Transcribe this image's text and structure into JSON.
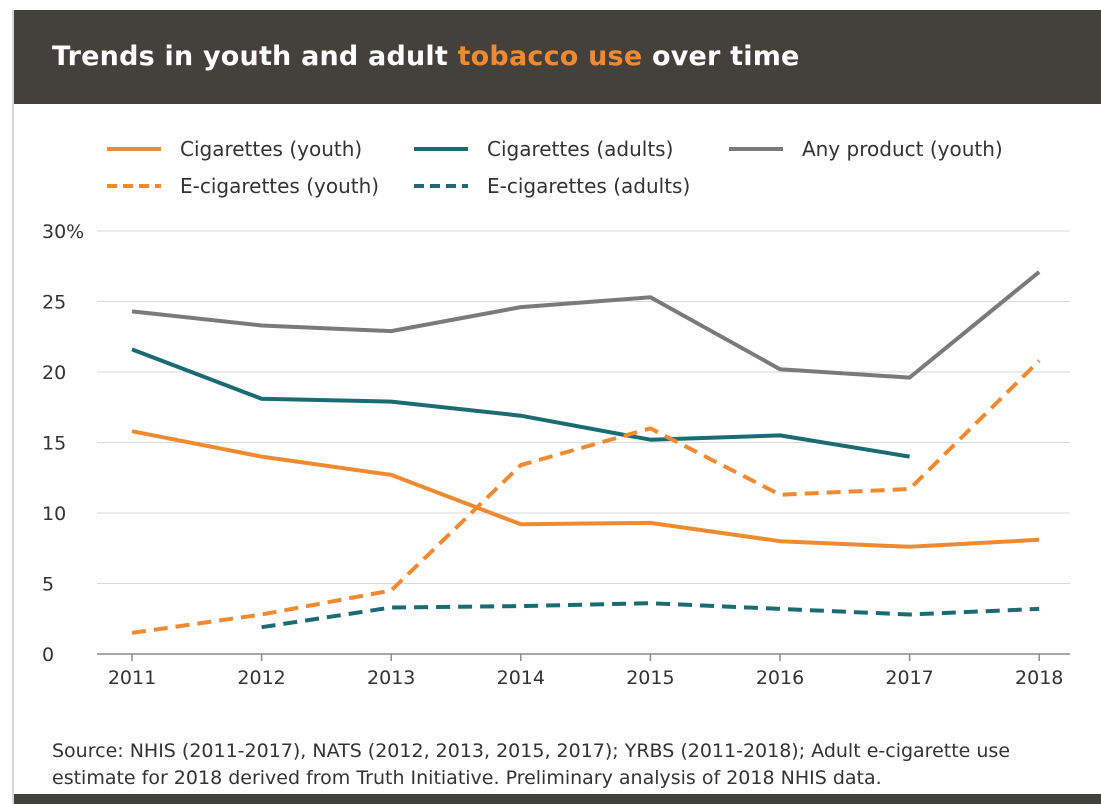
{
  "header": {
    "title_before": "Trends in youth and adult ",
    "title_highlight": "tobacco use",
    "title_after": " over time",
    "highlight_color": "#f08a30",
    "background": "#44403b"
  },
  "legend": [
    {
      "label": "Cigarettes (youth)",
      "color": "#f08a30",
      "style": "solid"
    },
    {
      "label": "Cigarettes (adults)",
      "color": "#1a6b72",
      "style": "solid"
    },
    {
      "label": "Any product (youth)",
      "color": "#7a7a7a",
      "style": "solid"
    },
    {
      "label": "E-cigarettes (youth)",
      "color": "#f08a30",
      "style": "dashed"
    },
    {
      "label": "E-cigarettes (adults)",
      "color": "#1a6b72",
      "style": "dashed"
    }
  ],
  "chart_data": {
    "type": "line",
    "title": "Trends in youth and adult tobacco use over time",
    "xlabel": "",
    "ylabel": "",
    "x": [
      2011,
      2012,
      2013,
      2014,
      2015,
      2016,
      2017,
      2018
    ],
    "x_tick_labels": [
      "2011",
      "2012",
      "2013",
      "2014",
      "2015",
      "2016",
      "2017",
      "2018"
    ],
    "ylim": [
      0,
      30
    ],
    "y_ticks": [
      0,
      5,
      10,
      15,
      20,
      25,
      30
    ],
    "y_tick_labels": [
      "0",
      "5",
      "10",
      "15",
      "20",
      "25",
      "30%"
    ],
    "grid": "horizontal",
    "legend_position": "top",
    "series": [
      {
        "name": "Cigarettes (youth)",
        "color": "#f08a30",
        "style": "solid",
        "values": [
          15.8,
          14.0,
          12.7,
          9.2,
          9.3,
          8.0,
          7.6,
          8.1
        ]
      },
      {
        "name": "Cigarettes (adults)",
        "color": "#1a6b72",
        "style": "solid",
        "values": [
          21.6,
          18.1,
          17.9,
          16.9,
          15.2,
          15.5,
          14.0,
          null
        ]
      },
      {
        "name": "Any product (youth)",
        "color": "#7a7a7a",
        "style": "solid",
        "values": [
          24.3,
          23.3,
          22.9,
          24.6,
          25.3,
          20.2,
          19.6,
          27.1
        ]
      },
      {
        "name": "E-cigarettes (youth)",
        "color": "#f08a30",
        "style": "dashed",
        "values": [
          1.5,
          2.8,
          4.5,
          13.4,
          16.0,
          11.3,
          11.7,
          20.8
        ]
      },
      {
        "name": "E-cigarettes (adults)",
        "color": "#1a6b72",
        "style": "dashed",
        "values": [
          null,
          1.9,
          3.3,
          3.4,
          3.6,
          3.2,
          2.8,
          3.2
        ]
      }
    ]
  },
  "source": "Source: NHIS (2011-2017), NATS (2012, 2013, 2015, 2017); YRBS (2011-2018); Adult e-cigarette use estimate for 2018 derived from Truth Initiative. Preliminary analysis of 2018 NHIS data."
}
